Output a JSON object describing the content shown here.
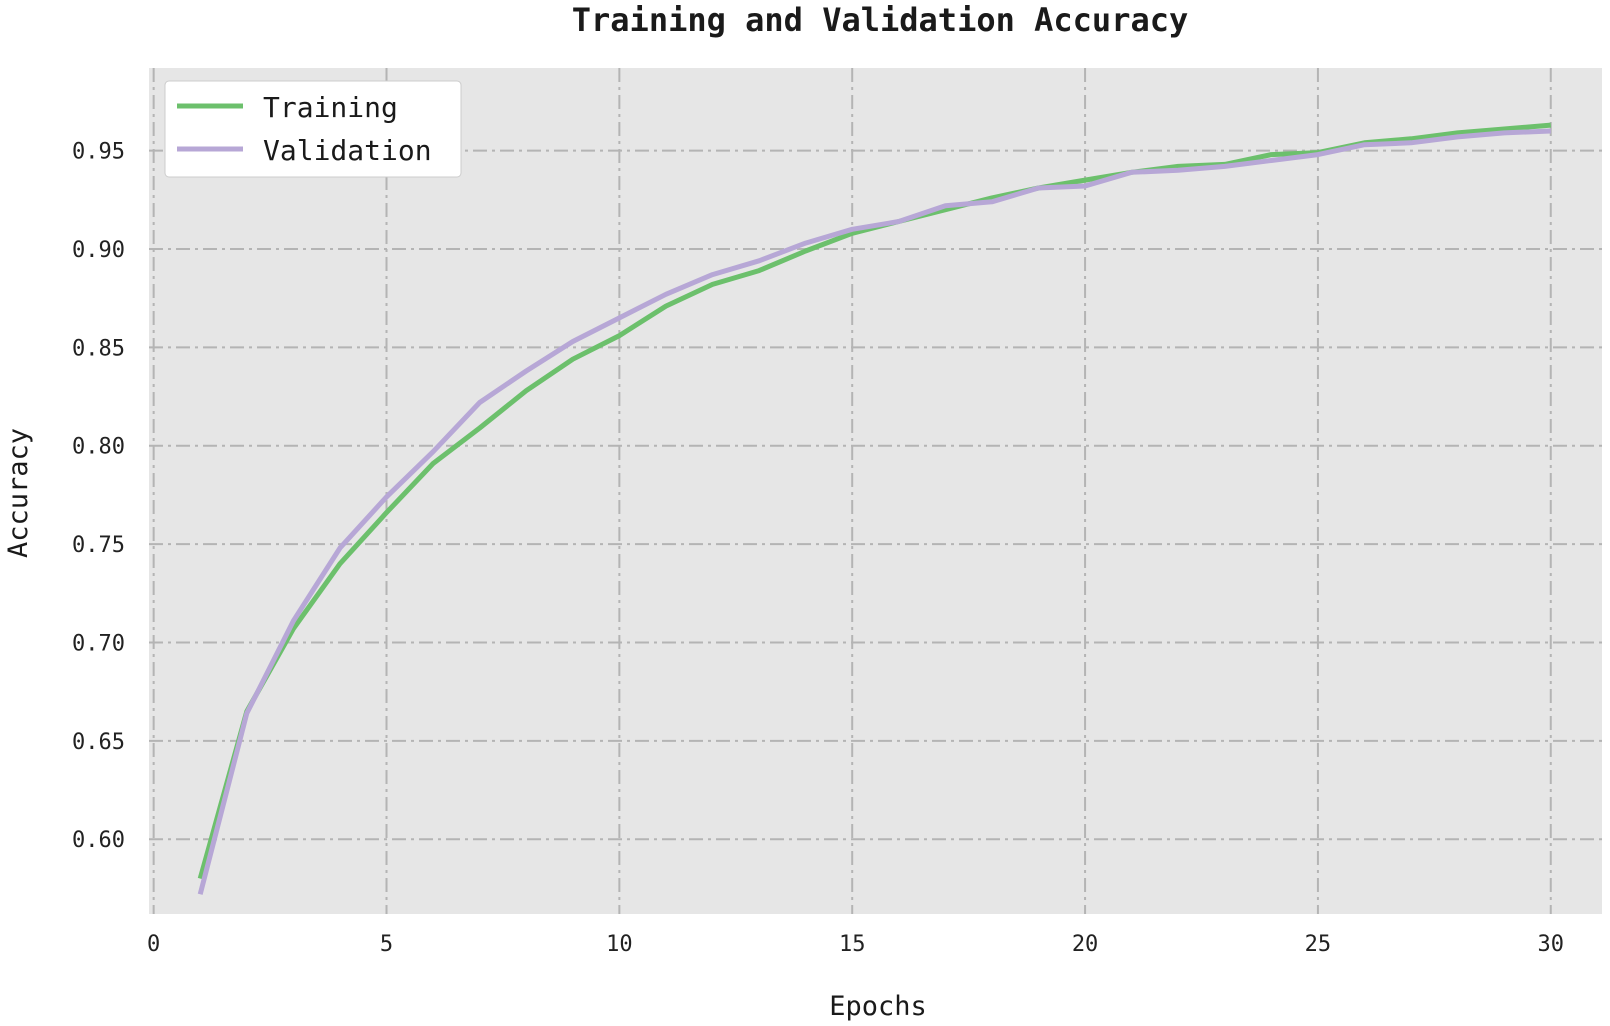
{
  "chart_data": {
    "type": "line",
    "title": "Training and Validation Accuracy",
    "xlabel": "Epochs",
    "ylabel": "Accuracy",
    "xlim": [
      -0.1,
      31.1
    ],
    "ylim": [
      0.562,
      0.992
    ],
    "xticks": [
      0,
      5,
      10,
      15,
      20,
      25,
      30
    ],
    "yticks": [
      0.6,
      0.65,
      0.7,
      0.75,
      0.8,
      0.85,
      0.9,
      0.95
    ],
    "grid": true,
    "grid_style": "dash-dot",
    "legend_position": "top-left",
    "x": [
      1,
      2,
      3,
      4,
      5,
      6,
      7,
      8,
      9,
      10,
      11,
      12,
      13,
      14,
      15,
      16,
      17,
      18,
      19,
      20,
      21,
      22,
      23,
      24,
      25,
      26,
      27,
      28,
      29,
      30
    ],
    "series": [
      {
        "name": "Training",
        "color": "#6cc06c",
        "values": [
          0.58,
          0.665,
          0.707,
          0.74,
          0.766,
          0.791,
          0.809,
          0.828,
          0.844,
          0.856,
          0.871,
          0.882,
          0.889,
          0.899,
          0.908,
          0.914,
          0.92,
          0.926,
          0.931,
          0.935,
          0.939,
          0.942,
          0.943,
          0.948,
          0.949,
          0.954,
          0.956,
          0.959,
          0.961,
          0.963
        ]
      },
      {
        "name": "Validation",
        "color": "#b7a7d6",
        "values": [
          0.572,
          0.664,
          0.711,
          0.748,
          0.774,
          0.797,
          0.822,
          0.838,
          0.853,
          0.865,
          0.877,
          0.887,
          0.894,
          0.903,
          0.91,
          0.914,
          0.922,
          0.924,
          0.931,
          0.932,
          0.939,
          0.94,
          0.942,
          0.945,
          0.948,
          0.953,
          0.954,
          0.957,
          0.959,
          0.96
        ]
      }
    ]
  },
  "colors": {
    "plot_background": "#e6e6e6",
    "grid": "#b4b4b4"
  }
}
